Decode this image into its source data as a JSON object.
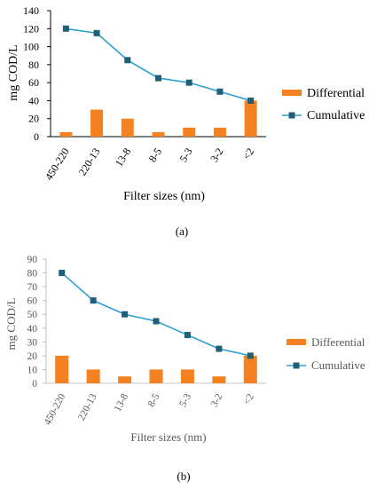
{
  "colors": {
    "bar": "#f58220",
    "line": "#2e9fd0",
    "marker": "#1f5f78",
    "axis_a": "#000000",
    "axis_b": "#bfbfbf"
  },
  "chart_data": [
    {
      "type": "bar",
      "panel_label": "(a)",
      "categories": [
        "450-220",
        "220-13",
        "13-8",
        "8-5",
        "5-3",
        "3-2",
        "<2"
      ],
      "series": [
        {
          "name": "Differential",
          "type": "bar",
          "values": [
            5,
            30,
            20,
            5,
            10,
            10,
            40
          ]
        },
        {
          "name": "Cumulative",
          "type": "line",
          "values": [
            120,
            115,
            85,
            65,
            60,
            50,
            40
          ]
        }
      ],
      "xlabel": "Filter sizes (nm)",
      "ylabel": "mg COD/L",
      "ylim": [
        0,
        140
      ],
      "yticks": [
        0,
        20,
        40,
        60,
        80,
        100,
        120,
        140
      ],
      "grid": false,
      "legend": "right"
    },
    {
      "type": "bar",
      "panel_label": "(b)",
      "categories": [
        "450-220",
        "220-13",
        "13-8",
        "8-5",
        "5-3",
        "3-2",
        "<2"
      ],
      "series": [
        {
          "name": "Differential",
          "type": "bar",
          "values": [
            20,
            10,
            5,
            10,
            10,
            5,
            20
          ]
        },
        {
          "name": "Cumulative",
          "type": "line",
          "values": [
            80,
            60,
            50,
            45,
            35,
            25,
            20
          ]
        }
      ],
      "xlabel": "Filter sizes (nm)",
      "ylabel": "mg COD/L",
      "ylim": [
        0,
        90
      ],
      "yticks": [
        0,
        10,
        20,
        30,
        40,
        50,
        60,
        70,
        80,
        90
      ],
      "grid": false,
      "legend": "right"
    }
  ]
}
